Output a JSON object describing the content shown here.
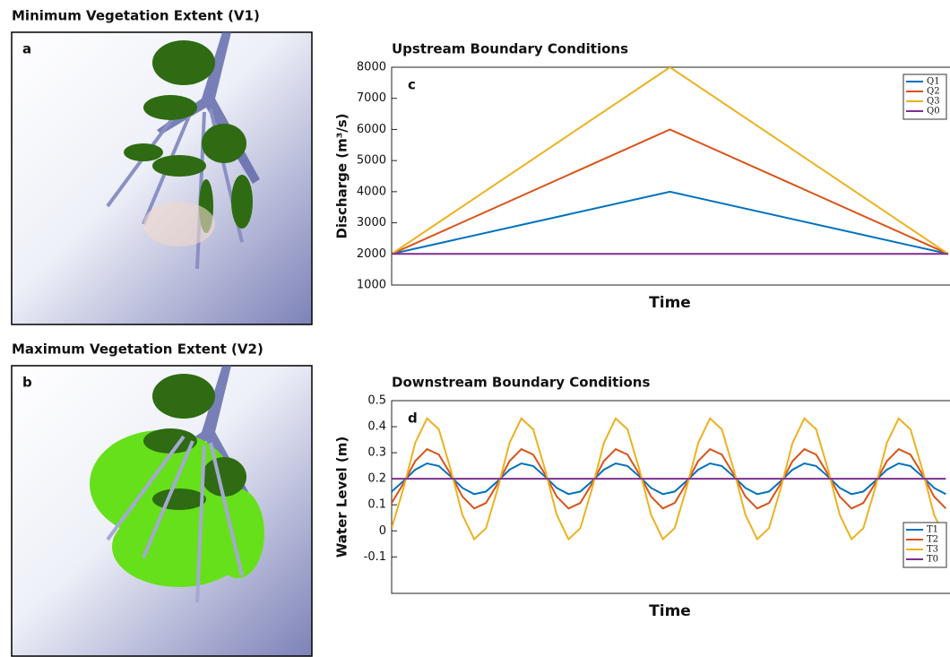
{
  "maps": [
    {
      "title": "Minimum Vegetation Extent (V1)",
      "label": "a"
    },
    {
      "title": "Maximum Vegetation Extent (V2)",
      "label": "b"
    }
  ],
  "chart_data": [
    {
      "type": "line",
      "title": "Upstream Boundary Conditions",
      "label": "c",
      "xlabel": "Time",
      "ylabel": "Discharge (m³/s)",
      "x": [
        0,
        1,
        2
      ],
      "xlim": [
        0,
        2
      ],
      "ylim": [
        1000,
        8000
      ],
      "yticks": [
        1000,
        2000,
        3000,
        4000,
        5000,
        6000,
        7000,
        8000
      ],
      "legend": "upper right",
      "series": [
        {
          "name": "Q1",
          "color": "#0072bd",
          "values": [
            2000,
            4000,
            2000
          ]
        },
        {
          "name": "Q2",
          "color": "#d95319",
          "values": [
            2000,
            6000,
            2000
          ]
        },
        {
          "name": "Q3",
          "color": "#edb120",
          "values": [
            2000,
            8000,
            2000
          ]
        },
        {
          "name": "Q0",
          "color": "#7e2f8e",
          "values": [
            2000,
            2000,
            2000
          ]
        }
      ]
    },
    {
      "type": "line",
      "title": "Downstream Boundary Conditions",
      "label": "d",
      "xlabel": "Time",
      "ylabel": "Water Level (m)",
      "x": [
        0,
        0.125,
        0.25,
        0.375,
        0.5,
        0.625,
        0.75,
        0.875,
        1,
        1.125,
        1.25,
        1.375,
        1.5,
        1.625,
        1.75,
        1.875,
        2,
        2.125,
        2.25,
        2.375,
        2.5,
        2.625,
        2.75,
        2.875,
        3,
        3.125,
        3.25,
        3.375,
        3.5,
        3.625,
        3.75,
        3.875,
        4,
        4.125,
        4.25,
        4.375,
        4.5,
        4.625,
        4.75,
        4.875,
        5,
        5.125,
        5.25,
        5.375,
        5.5,
        5.625,
        5.75,
        5.875
      ],
      "xlim": [
        0,
        5.9
      ],
      "ylim": [
        -0.24,
        0.5
      ],
      "yticks": [
        -0.1,
        0,
        0.1,
        0.2,
        0.3,
        0.4,
        0.5
      ],
      "legend": "lower right",
      "series": [
        {
          "name": "T1",
          "color": "#0072bd",
          "values": [
            0.151,
            0.191,
            0.235,
            0.259,
            0.249,
            0.209,
            0.165,
            0.141,
            0.151,
            0.191,
            0.235,
            0.259,
            0.249,
            0.209,
            0.165,
            0.141,
            0.151,
            0.191,
            0.235,
            0.259,
            0.249,
            0.209,
            0.165,
            0.141,
            0.151,
            0.191,
            0.235,
            0.259,
            0.249,
            0.209,
            0.165,
            0.141,
            0.151,
            0.191,
            0.235,
            0.259,
            0.249,
            0.209,
            0.165,
            0.141,
            0.151,
            0.191,
            0.235,
            0.259,
            0.249,
            0.209,
            0.165,
            0.141
          ]
        },
        {
          "name": "T2",
          "color": "#d95319",
          "values": [
            0.107,
            0.182,
            0.268,
            0.314,
            0.293,
            0.218,
            0.132,
            0.086,
            0.107,
            0.182,
            0.268,
            0.314,
            0.293,
            0.218,
            0.132,
            0.086,
            0.107,
            0.182,
            0.268,
            0.314,
            0.293,
            0.218,
            0.132,
            0.086,
            0.107,
            0.182,
            0.268,
            0.314,
            0.293,
            0.218,
            0.132,
            0.086,
            0.107,
            0.182,
            0.268,
            0.314,
            0.293,
            0.218,
            0.132,
            0.086,
            0.107,
            0.182,
            0.268,
            0.314,
            0.293,
            0.218,
            0.132,
            0.086
          ]
        },
        {
          "name": "T3",
          "color": "#edb120",
          "values": [
            0.01,
            0.163,
            0.338,
            0.432,
            0.39,
            0.237,
            0.062,
            -0.032,
            0.01,
            0.163,
            0.338,
            0.432,
            0.39,
            0.237,
            0.062,
            -0.032,
            0.01,
            0.163,
            0.338,
            0.432,
            0.39,
            0.237,
            0.062,
            -0.032,
            0.01,
            0.163,
            0.338,
            0.432,
            0.39,
            0.237,
            0.062,
            -0.032,
            0.01,
            0.163,
            0.338,
            0.432,
            0.39,
            0.237,
            0.062,
            -0.032,
            0.01,
            0.163,
            0.338,
            0.432,
            0.39,
            0.237,
            0.062,
            -0.032
          ]
        },
        {
          "name": "T0",
          "color": "#7e2f8e",
          "values": [
            0.2,
            0.2,
            0.2,
            0.2,
            0.2,
            0.2,
            0.2,
            0.2,
            0.2,
            0.2,
            0.2,
            0.2,
            0.2,
            0.2,
            0.2,
            0.2,
            0.2,
            0.2,
            0.2,
            0.2,
            0.2,
            0.2,
            0.2,
            0.2,
            0.2,
            0.2,
            0.2,
            0.2,
            0.2,
            0.2,
            0.2,
            0.2,
            0.2,
            0.2,
            0.2,
            0.2,
            0.2,
            0.2,
            0.2,
            0.2,
            0.2,
            0.2,
            0.2,
            0.2,
            0.2,
            0.2,
            0.2,
            0.2
          ]
        }
      ]
    }
  ]
}
